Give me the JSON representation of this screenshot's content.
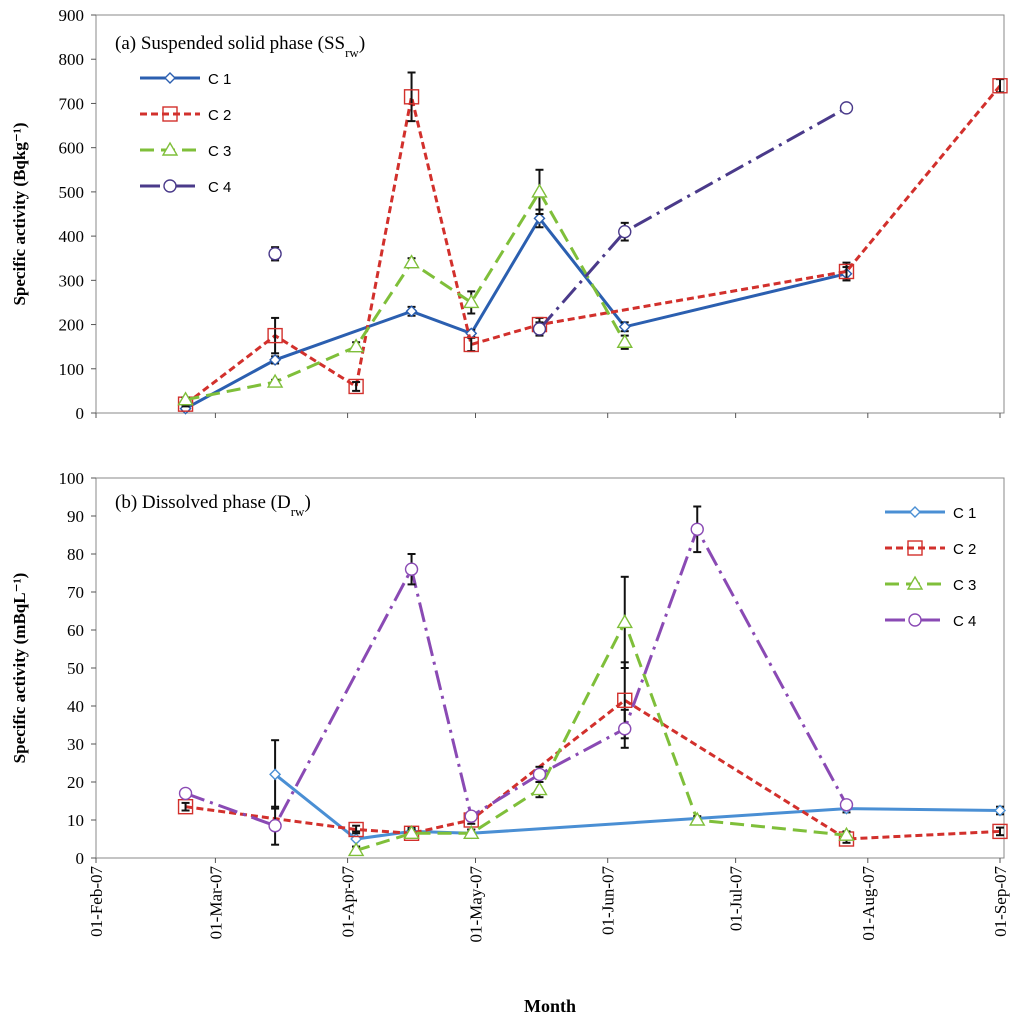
{
  "figure": {
    "xlabel": "Month",
    "x_ticks": [
      "01-Feb-07",
      "01-Mar-07",
      "01-Apr-07",
      "01-May-07",
      "01-Jun-07",
      "01-Jul-07",
      "01-Aug-07",
      "01-Sep-07"
    ]
  },
  "colors": {
    "C1": "#2b5fb0",
    "C2": "#d2302c",
    "C3": "#7fbf3a",
    "C4": "#4a3a8a",
    "C1_b": "#4a8fd4",
    "C4_b": "#8a4ab4",
    "error": "#111111"
  },
  "chart_data": [
    {
      "id": "a",
      "type": "line",
      "title_main": "(a) Suspended  solid phase (SS",
      "title_sub": "rw",
      "title_close": ")",
      "ylabel": "Specific activity (Bqkg⁻¹)",
      "ylim": [
        0,
        900
      ],
      "yticks": [
        0,
        100,
        200,
        300,
        400,
        500,
        600,
        700,
        800,
        900
      ],
      "grid": false,
      "legend_position": "top-left",
      "series": [
        {
          "name": "C 1",
          "key": "C1",
          "style": "solid",
          "marker": "diamond",
          "points": [
            [
              "2007-02-22",
              10,
              5
            ],
            [
              "2007-03-15",
              120,
              8
            ],
            [
              "2007-04-16",
              230,
              10
            ],
            [
              "2007-04-30",
              180,
              8
            ],
            [
              "2007-05-16",
              440,
              20
            ],
            [
              "2007-06-05",
              195,
              10
            ],
            [
              "2007-07-27",
              315,
              15
            ]
          ]
        },
        {
          "name": "C 2",
          "key": "C2",
          "style": "dash",
          "marker": "square",
          "points": [
            [
              "2007-02-22",
              20,
              5
            ],
            [
              "2007-03-15",
              175,
              40
            ],
            [
              "2007-04-03",
              60,
              10
            ],
            [
              "2007-04-16",
              715,
              55
            ],
            [
              "2007-04-30",
              155,
              15
            ],
            [
              "2007-05-16",
              200,
              15
            ],
            [
              "2007-07-27",
              320,
              20
            ],
            [
              "2007-09-01",
              740,
              15
            ]
          ]
        },
        {
          "name": "C 3",
          "key": "C3",
          "style": "longdash",
          "marker": "triangle",
          "points": [
            [
              "2007-02-22",
              30,
              5
            ],
            [
              "2007-03-15",
              70,
              5
            ],
            [
              "2007-04-03",
              150,
              10
            ],
            [
              "2007-04-16",
              340,
              10
            ],
            [
              "2007-04-30",
              250,
              25
            ],
            [
              "2007-05-16",
              500,
              50
            ],
            [
              "2007-06-05",
              160,
              15
            ]
          ]
        },
        {
          "name": "C 4",
          "key": "C4",
          "style": "dashdot",
          "marker": "circle",
          "points": [
            [
              "2007-05-16",
              190,
              15
            ],
            [
              "2007-06-05",
              410,
              20
            ],
            [
              "2007-07-27",
              690,
              5
            ]
          ]
        },
        {
          "name": "",
          "key": "C4",
          "style": "none",
          "marker": "circle",
          "points": [
            [
              "2007-03-15",
              360,
              15
            ]
          ]
        }
      ]
    },
    {
      "id": "b",
      "type": "line",
      "title_main": "(b) Dissolved phase (D",
      "title_sub": "rw",
      "title_close": ")",
      "ylabel": "Specific activity (mBqL⁻¹)",
      "ylim": [
        0,
        100
      ],
      "yticks": [
        0,
        10,
        20,
        30,
        40,
        50,
        60,
        70,
        80,
        90,
        100
      ],
      "grid": false,
      "legend_position": "top-right",
      "series": [
        {
          "name": "C 1",
          "key": "C1_b",
          "style": "solid",
          "marker": "diamond",
          "points": [
            [
              "2007-03-15",
              22,
              9
            ],
            [
              "2007-04-03",
              5,
              2
            ],
            [
              "2007-04-16",
              7,
              1
            ],
            [
              "2007-04-30",
              6.5,
              1
            ],
            [
              "2007-07-27",
              13,
              1
            ],
            [
              "2007-09-01",
              12.5,
              1
            ]
          ]
        },
        {
          "name": "C 2",
          "key": "C2",
          "style": "dash",
          "marker": "square",
          "points": [
            [
              "2007-02-22",
              13.5,
              1
            ],
            [
              "2007-04-03",
              7.5,
              1
            ],
            [
              "2007-04-16",
              6.5,
              1
            ],
            [
              "2007-04-30",
              10,
              1
            ],
            [
              "2007-06-05",
              41.5,
              10
            ],
            [
              "2007-07-27",
              5,
              1
            ],
            [
              "2007-09-01",
              7,
              1
            ]
          ]
        },
        {
          "name": "C 3",
          "key": "C3",
          "style": "longdash",
          "marker": "triangle",
          "points": [
            [
              "2007-04-03",
              2,
              1
            ],
            [
              "2007-04-16",
              6.5,
              1
            ],
            [
              "2007-04-30",
              6.5,
              1
            ],
            [
              "2007-05-16",
              18,
              2
            ],
            [
              "2007-06-05",
              62,
              12
            ],
            [
              "2007-06-22",
              10,
              1
            ],
            [
              "2007-07-27",
              6,
              1
            ]
          ]
        },
        {
          "name": "C 4",
          "key": "C4_b",
          "style": "dashdot",
          "marker": "circle",
          "points": [
            [
              "2007-02-22",
              17,
              1
            ],
            [
              "2007-03-15",
              8.5,
              5
            ],
            [
              "2007-04-16",
              76,
              4
            ],
            [
              "2007-04-30",
              11,
              1
            ],
            [
              "2007-05-16",
              22,
              2
            ],
            [
              "2007-06-05",
              34,
              5
            ],
            [
              "2007-06-22",
              86.5,
              6
            ],
            [
              "2007-07-27",
              14,
              1
            ]
          ]
        }
      ]
    }
  ]
}
